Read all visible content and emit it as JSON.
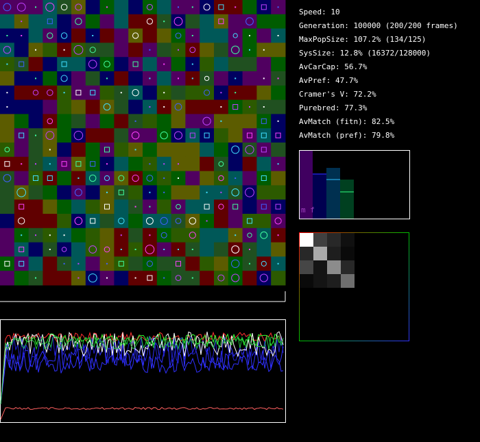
{
  "stats": [
    "Speed: 10",
    "Generation: 100000 (200/200 frames)",
    "MaxPopSize: 107.2% (134/125)",
    "SysSize: 12.8% (16372/128000)",
    "AvCarCap: 56.7%",
    "AvPref: 47.7%",
    "Cramer's V: 72.2%",
    "Purebred: 77.3%",
    "AvMatch (fitn): 82.5%",
    "AvMatch (pref): 79.8%"
  ],
  "histogram_label": "m f"
}
